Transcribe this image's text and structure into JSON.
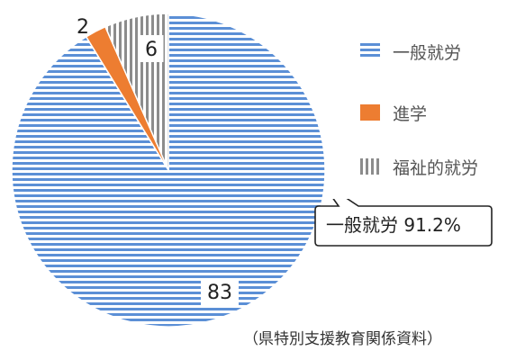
{
  "chart_data": {
    "type": "pie",
    "categories": [
      "一般就労",
      "進学",
      "福祉的就労"
    ],
    "values": [
      83,
      2,
      6
    ],
    "data_labels": [
      "83",
      "2",
      "6"
    ],
    "start_angle_deg": 0,
    "direction": "clockwise",
    "colors": {
      "一般就労": "#5b8fd6",
      "進学": "#ed7d31",
      "福祉的就労": "#8c8c8c"
    },
    "patterns": {
      "一般就労": "horizontal-stripes",
      "進学": "solid",
      "福祉的就労": "vertical-stripes"
    },
    "legend_position": "right",
    "annotation": "一般就労 91.2%"
  },
  "source": "（県特別支援教育関係資料）"
}
